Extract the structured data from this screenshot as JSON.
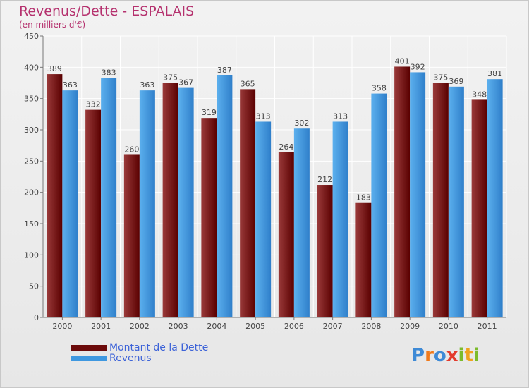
{
  "header": {
    "title": "Revenus/Dette - ESPALAIS",
    "subtitle": "(en milliers d'€)"
  },
  "legend": [
    {
      "label": "Montant de la Dette",
      "color": "#6b0a0a"
    },
    {
      "label": "Revenus",
      "color": "#3f98e0"
    }
  ],
  "logo": {
    "letters": [
      "P",
      "r",
      "o",
      "x",
      "i",
      "t",
      "i"
    ],
    "colors": [
      "#3e8ad6",
      "#f07a1c",
      "#3e8ad6",
      "#e33b2d",
      "#7cbb2b",
      "#f0a21c",
      "#7cbb2b"
    ]
  },
  "chart_data": {
    "type": "bar",
    "categories": [
      "2000",
      "2001",
      "2002",
      "2003",
      "2004",
      "2005",
      "2006",
      "2007",
      "2008",
      "2009",
      "2010",
      "2011"
    ],
    "series": [
      {
        "name": "Montant de la Dette",
        "color": "#6b0a0a",
        "values": [
          389,
          332,
          260,
          375,
          319,
          365,
          264,
          212,
          183,
          401,
          375,
          348
        ]
      },
      {
        "name": "Revenus",
        "color": "#3f98e0",
        "values": [
          363,
          383,
          363,
          367,
          387,
          313,
          302,
          313,
          358,
          392,
          369,
          381
        ]
      }
    ],
    "ylim": [
      0,
      450
    ],
    "yticks": [
      0,
      50,
      100,
      150,
      200,
      250,
      300,
      350,
      400,
      450
    ],
    "grid": true,
    "legend_position": "bottom-left"
  }
}
